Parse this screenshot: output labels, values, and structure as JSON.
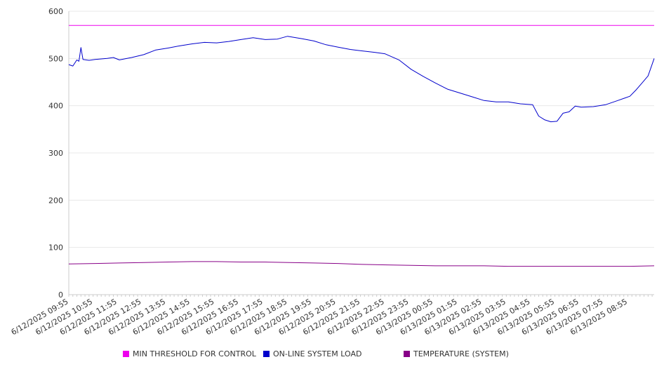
{
  "chart_data": {
    "type": "line",
    "title": "",
    "xlabel": "",
    "ylabel": "",
    "ylim": [
      0,
      600
    ],
    "y_ticks": [
      "0",
      "100",
      "200",
      "300",
      "400",
      "500",
      "600"
    ],
    "x_tick_labels": [
      "6/12/2025 09:55",
      "6/12/2025 10:55",
      "6/12/2025 11:55",
      "6/12/2025 12:55",
      "6/12/2025 13:55",
      "6/12/2025 14:55",
      "6/12/2025 15:55",
      "6/12/2025 16:55",
      "6/12/2025 17:55",
      "6/12/2025 18:55",
      "6/12/2025 19:55",
      "6/12/2025 20:55",
      "6/12/2025 21:55",
      "6/12/2025 22:55",
      "6/12/2025 23:55",
      "6/13/2025 00:55",
      "6/13/2025 01:55",
      "6/13/2025 02:55",
      "6/13/2025 03:55",
      "6/13/2025 04:55",
      "6/13/2025 05:55",
      "6/13/2025 06:55",
      "6/13/2025 07:55",
      "6/13/2025 08:55"
    ],
    "x_start": "6/12/2025 09:55",
    "x_end": "6/13/2025 10:00",
    "grid": true,
    "legend_position": "bottom",
    "series": [
      {
        "name": "MIN THRESHOLD FOR CONTROL",
        "color": "#ee00ee",
        "points": [
          [
            "6/12/2025 09:55",
            570
          ],
          [
            "6/13/2025 10:00",
            570
          ]
        ]
      },
      {
        "name": "ON-LINE SYSTEM LOAD",
        "color": "#0000cc",
        "points": [
          [
            "6/12/2025 09:55",
            487
          ],
          [
            "6/12/2025 10:05",
            484
          ],
          [
            "6/12/2025 10:15",
            497
          ],
          [
            "6/12/2025 10:20",
            494
          ],
          [
            "6/12/2025 10:25",
            523
          ],
          [
            "6/12/2025 10:30",
            498
          ],
          [
            "6/12/2025 10:45",
            496
          ],
          [
            "6/12/2025 11:00",
            498
          ],
          [
            "6/12/2025 11:30",
            500
          ],
          [
            "6/12/2025 11:45",
            502
          ],
          [
            "6/12/2025 12:00",
            497
          ],
          [
            "6/12/2025 12:30",
            502
          ],
          [
            "6/12/2025 13:00",
            508
          ],
          [
            "6/12/2025 13:30",
            518
          ],
          [
            "6/12/2025 14:00",
            522
          ],
          [
            "6/12/2025 14:30",
            527
          ],
          [
            "6/12/2025 15:00",
            531
          ],
          [
            "6/12/2025 15:30",
            534
          ],
          [
            "6/12/2025 16:00",
            533
          ],
          [
            "6/12/2025 16:30",
            536
          ],
          [
            "6/12/2025 17:00",
            540
          ],
          [
            "6/12/2025 17:30",
            544
          ],
          [
            "6/12/2025 18:00",
            540
          ],
          [
            "6/12/2025 18:30",
            541
          ],
          [
            "6/12/2025 18:55",
            547
          ],
          [
            "6/12/2025 19:30",
            542
          ],
          [
            "6/12/2025 20:00",
            537
          ],
          [
            "6/12/2025 20:30",
            529
          ],
          [
            "6/12/2025 21:00",
            524
          ],
          [
            "6/12/2025 21:30",
            519
          ],
          [
            "6/12/2025 22:00",
            516
          ],
          [
            "6/12/2025 22:30",
            513
          ],
          [
            "6/12/2025 22:55",
            510
          ],
          [
            "6/12/2025 23:30",
            497
          ],
          [
            "6/13/2025 00:00",
            477
          ],
          [
            "6/13/2025 00:30",
            462
          ],
          [
            "6/13/2025 01:00",
            448
          ],
          [
            "6/13/2025 01:30",
            435
          ],
          [
            "6/13/2025 02:00",
            427
          ],
          [
            "6/13/2025 02:30",
            419
          ],
          [
            "6/13/2025 03:00",
            411
          ],
          [
            "6/13/2025 03:30",
            408
          ],
          [
            "6/13/2025 04:00",
            408
          ],
          [
            "6/13/2025 04:30",
            404
          ],
          [
            "6/13/2025 05:00",
            402
          ],
          [
            "6/13/2025 05:15",
            378
          ],
          [
            "6/13/2025 05:30",
            370
          ],
          [
            "6/13/2025 05:45",
            366
          ],
          [
            "6/13/2025 06:00",
            367
          ],
          [
            "6/13/2025 06:15",
            384
          ],
          [
            "6/13/2025 06:30",
            387
          ],
          [
            "6/13/2025 06:45",
            399
          ],
          [
            "6/13/2025 07:00",
            397
          ],
          [
            "6/13/2025 07:30",
            398
          ],
          [
            "6/13/2025 08:00",
            402
          ],
          [
            "6/13/2025 08:30",
            411
          ],
          [
            "6/13/2025 09:00",
            420
          ],
          [
            "6/13/2025 09:15",
            433
          ],
          [
            "6/13/2025 09:30",
            448
          ],
          [
            "6/13/2025 09:45",
            463
          ],
          [
            "6/13/2025 10:00",
            500
          ]
        ]
      },
      {
        "name": "TEMPERATURE (SYSTEM)",
        "color": "#880088",
        "points": [
          [
            "6/12/2025 09:55",
            65
          ],
          [
            "6/12/2025 11:00",
            66
          ],
          [
            "6/12/2025 12:00",
            67
          ],
          [
            "6/12/2025 13:00",
            68
          ],
          [
            "6/12/2025 14:00",
            69
          ],
          [
            "6/12/2025 15:00",
            70
          ],
          [
            "6/12/2025 16:00",
            70
          ],
          [
            "6/12/2025 17:00",
            69
          ],
          [
            "6/12/2025 18:00",
            69
          ],
          [
            "6/12/2025 19:00",
            68
          ],
          [
            "6/12/2025 20:00",
            67
          ],
          [
            "6/12/2025 21:00",
            66
          ],
          [
            "6/12/2025 22:00",
            64
          ],
          [
            "6/12/2025 23:00",
            63
          ],
          [
            "6/13/2025 00:00",
            62
          ],
          [
            "6/13/2025 01:00",
            61
          ],
          [
            "6/13/2025 02:00",
            61
          ],
          [
            "6/13/2025 03:00",
            61
          ],
          [
            "6/13/2025 04:00",
            60
          ],
          [
            "6/13/2025 05:00",
            60
          ],
          [
            "6/13/2025 06:00",
            60
          ],
          [
            "6/13/2025 07:00",
            60
          ],
          [
            "6/13/2025 08:00",
            60
          ],
          [
            "6/13/2025 09:00",
            60
          ],
          [
            "6/13/2025 10:00",
            61
          ]
        ]
      }
    ]
  }
}
